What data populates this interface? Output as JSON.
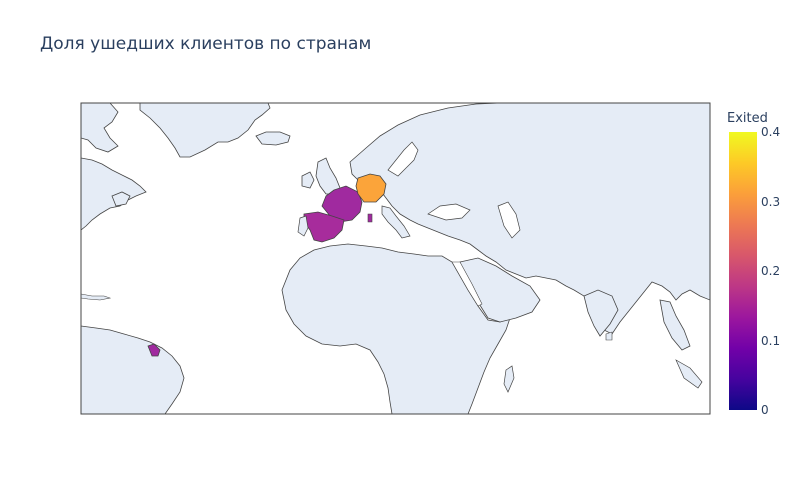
{
  "chart_data": {
    "type": "choropleth",
    "title": "Доля ушедших клиентов по странам",
    "colorbar": {
      "title": "Exited",
      "range": [
        0,
        0.4
      ],
      "ticks": [
        "0",
        "0.1",
        "0.2",
        "0.3",
        "0.4"
      ],
      "colorscale": [
        "#0d0887",
        "#46039f",
        "#7201a8",
        "#9c179e",
        "#bd3786",
        "#d8576b",
        "#ed7953",
        "#fb9f3a",
        "#fdca26",
        "#f0f921"
      ]
    },
    "regions": [
      {
        "name": "France",
        "value": 0.16
      },
      {
        "name": "Spain",
        "value": 0.17
      },
      {
        "name": "Germany",
        "value": 0.32
      },
      {
        "name": "French Guiana",
        "value": 0.16
      }
    ],
    "colors": {
      "land": "#e5ecf6",
      "ocean": "#ffffff",
      "coast": "#444444",
      "text": "#2a3f5f"
    }
  }
}
